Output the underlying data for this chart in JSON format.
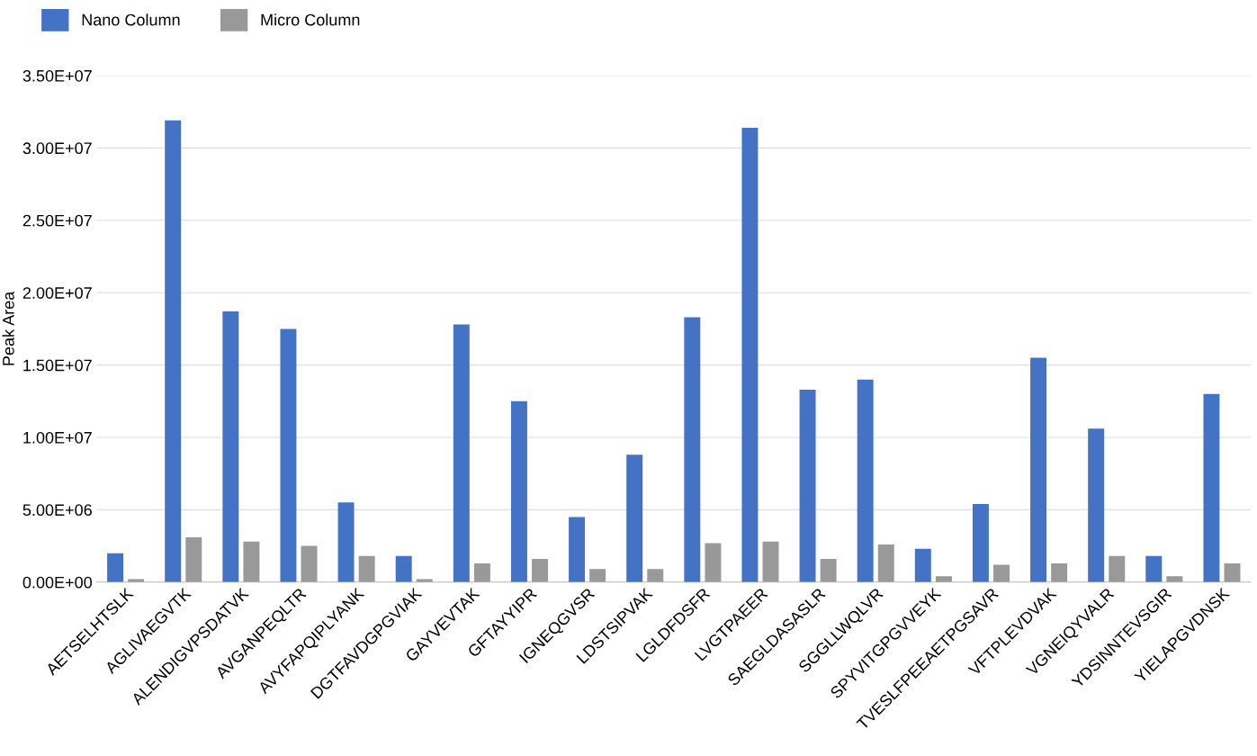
{
  "chart_data": {
    "type": "bar",
    "ylabel": "Peak Area",
    "legend": "top left",
    "grid": "y",
    "categories": [
      "AETSELHTSLK",
      "AGLIVAEGVTK",
      "ALENDIGVPSDATVK",
      "AVGANPEQLTR",
      "AVYFAPQIPLYANK",
      "DGTFAVDGPGVIAK",
      "GAYVEVTAK",
      "GFTAYYIPR",
      "IGNEQGVSR",
      "LDSTSIPVAK",
      "LGLDFDSFR",
      "LVGTPAEER",
      "SAEGLDASASLR",
      "SGGLLWQLVR",
      "SPYVITGPGVVEYK",
      "TVESLFPEEAETPGSAVR",
      "VFTPLEVDVAK",
      "VGNEIQYVALR",
      "YDSINNTEVSGIR",
      "YIELAPGVDNSK"
    ],
    "series": [
      {
        "name": "Nano Column",
        "color": "#4472c4",
        "values": [
          2000000,
          31900000,
          18700000,
          17500000,
          5500000,
          1800000,
          17800000,
          12500000,
          4500000,
          8800000,
          18300000,
          31400000,
          13300000,
          14000000,
          2300000,
          5400000,
          15500000,
          10600000,
          1800000,
          13000000
        ]
      },
      {
        "name": "Micro Column",
        "color": "#999999",
        "values": [
          200000,
          3100000,
          2800000,
          2500000,
          1800000,
          200000,
          1300000,
          1600000,
          900000,
          900000,
          2700000,
          2800000,
          1600000,
          2600000,
          400000,
          1200000,
          1300000,
          1800000,
          400000,
          1300000
        ]
      }
    ],
    "ylim": [
      0,
      35000000
    ],
    "yticks": [
      {
        "value": 0,
        "label": "0.00E+00"
      },
      {
        "value": 5000000,
        "label": "5.00E+06"
      },
      {
        "value": 10000000,
        "label": "1.00E+07"
      },
      {
        "value": 15000000,
        "label": "1.50E+07"
      },
      {
        "value": 20000000,
        "label": "2.00E+07"
      },
      {
        "value": 25000000,
        "label": "2.50E+07"
      },
      {
        "value": 30000000,
        "label": "3.00E+07"
      },
      {
        "value": 35000000,
        "label": "3.50E+07"
      }
    ]
  }
}
